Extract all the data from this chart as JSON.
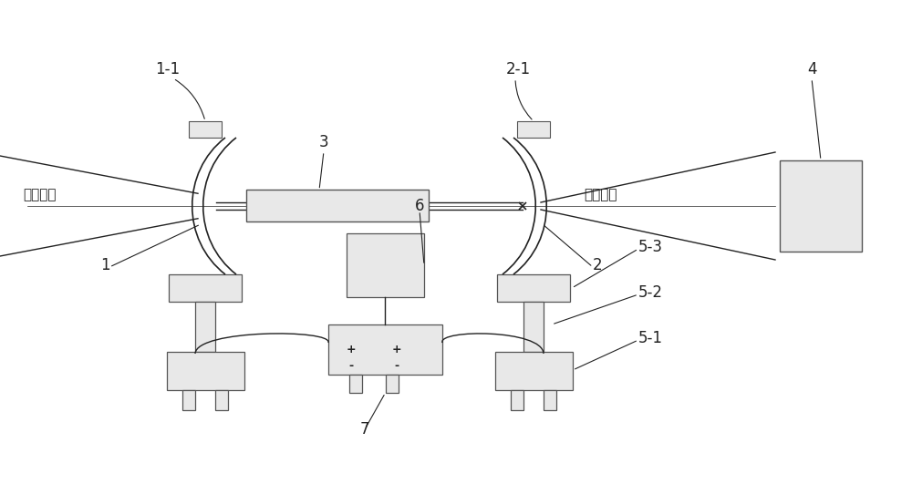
{
  "bg_color": "#ffffff",
  "line_color": "#222222",
  "box_fill": "#e8e8e8",
  "box_edge": "#555555",
  "fig_width": 10.0,
  "fig_height": 5.31,
  "labels": {
    "gauss_left": "高斯光束",
    "gauss_right": "高斯光束",
    "label_1_1": "1-1",
    "label_2_1": "2-1",
    "label_3": "3",
    "label_4": "4",
    "label_1": "1",
    "label_2": "2",
    "label_5_1": "5-1",
    "label_5_2": "5-2",
    "label_5_3": "5-3",
    "label_6": "6",
    "label_7": "7"
  }
}
